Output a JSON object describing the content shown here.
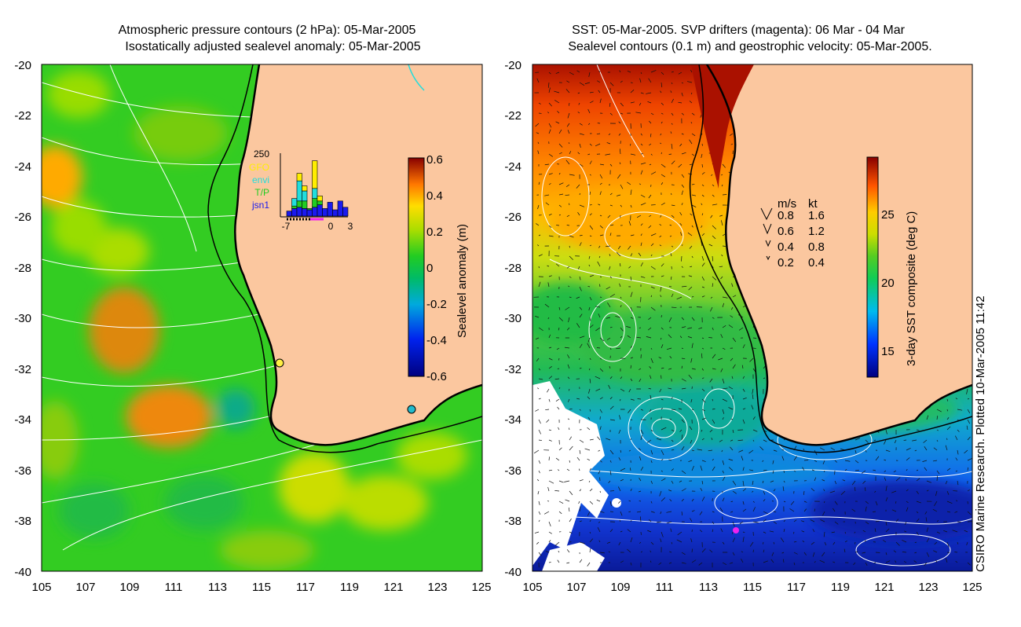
{
  "left_panel": {
    "title_line1": "Atmospheric pressure contours (2 hPa): 05-Mar-2005",
    "title_line2": "Isostatically adjusted sealevel anomaly: 05-Mar-2005",
    "x_ticks": [
      "105",
      "107",
      "109",
      "111",
      "113",
      "115",
      "117",
      "119",
      "121",
      "123",
      "125"
    ],
    "y_ticks": [
      "-20",
      "-22",
      "-24",
      "-26",
      "-28",
      "-30",
      "-32",
      "-34",
      "-36",
      "-38",
      "-40"
    ],
    "colorbar": {
      "label": "Sealevel anomaly (m)",
      "ticks": [
        "0.6",
        "0.4",
        "0.2",
        "0",
        "-0.2",
        "-0.4",
        "-0.6"
      ],
      "range": [
        -0.6,
        0.6
      ]
    },
    "inset": {
      "y_top_label": "250",
      "x_ticks": [
        "-7",
        "0",
        "3"
      ],
      "legend": [
        {
          "name": "GFO",
          "color": "#ffee00"
        },
        {
          "name": "envi",
          "color": "#22dddd"
        },
        {
          "name": "T/P",
          "color": "#22cc22"
        },
        {
          "name": "jsn1",
          "color": "#1a1aee"
        }
      ],
      "bars": [
        {
          "jsn1": 20,
          "tp": 0,
          "envi": 0,
          "gfo": 0
        },
        {
          "jsn1": 30,
          "tp": 10,
          "envi": 30,
          "gfo": 0
        },
        {
          "jsn1": 35,
          "tp": 25,
          "envi": 80,
          "gfo": 30
        },
        {
          "jsn1": 30,
          "tp": 30,
          "envi": 40,
          "gfo": 20
        },
        {
          "jsn1": 25,
          "tp": 5,
          "envi": 0,
          "gfo": 0
        },
        {
          "jsn1": 35,
          "tp": 35,
          "envi": 40,
          "gfo": 110
        },
        {
          "jsn1": 45,
          "tp": 15,
          "envi": 0,
          "gfo": 20
        },
        {
          "jsn1": 30,
          "tp": 0,
          "envi": 0,
          "gfo": 0
        },
        {
          "jsn1": 55,
          "tp": 0,
          "envi": 0,
          "gfo": 0
        },
        {
          "jsn1": 25,
          "tp": 0,
          "envi": 0,
          "gfo": 0
        },
        {
          "jsn1": 60,
          "tp": 0,
          "envi": 0,
          "gfo": 0
        },
        {
          "jsn1": 35,
          "tp": 0,
          "envi": 0,
          "gfo": 0
        }
      ]
    }
  },
  "right_panel": {
    "title_line1": "SST: 05-Mar-2005. SVP drifters (magenta): 06 Mar - 04 Mar",
    "title_line2": "Sealevel contours (0.1 m) and geostrophic velocity: 05-Mar-2005.",
    "x_ticks": [
      "105",
      "107",
      "109",
      "111",
      "113",
      "115",
      "117",
      "119",
      "121",
      "123",
      "125"
    ],
    "y_ticks": [
      "-20",
      "-22",
      "-24",
      "-26",
      "-28",
      "-30",
      "-32",
      "-34",
      "-36",
      "-38",
      "-40"
    ],
    "colorbar": {
      "label": "3-day SST composite (deg C)",
      "ticks": [
        "25",
        "20",
        "15"
      ],
      "range": [
        13,
        29
      ]
    },
    "velocity_legend": {
      "header_ms": "m/s",
      "header_kt": "kt",
      "rows": [
        {
          "ms": "0.8",
          "kt": "1.6"
        },
        {
          "ms": "0.6",
          "kt": "1.2"
        },
        {
          "ms": "0.4",
          "kt": "0.8"
        },
        {
          "ms": "0.2",
          "kt": "0.4"
        }
      ]
    }
  },
  "credit": "CSIRO Marine Research. Plotted 10-Mar-2005 11:42",
  "colors": {
    "land": "#fbc79f",
    "contour": "#ffffff",
    "drifter": "#ee22ee"
  }
}
